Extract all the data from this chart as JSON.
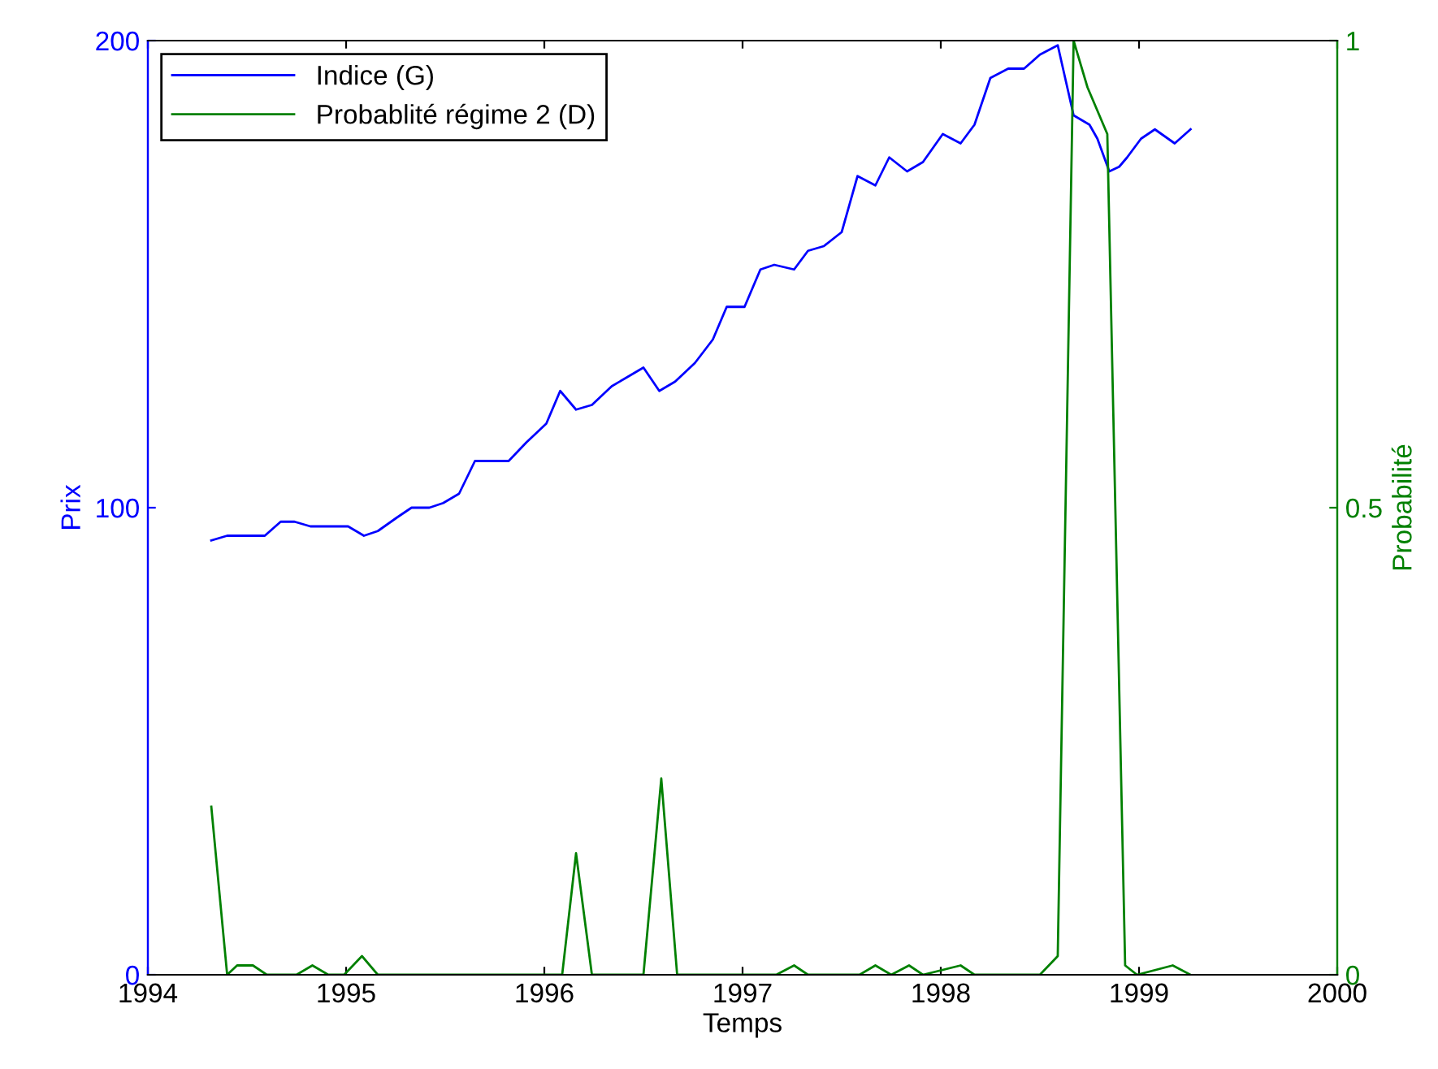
{
  "chart_data": {
    "type": "line",
    "xlabel": "Temps",
    "ylabel": "Prix",
    "y2label": "Probabilité",
    "xlim": [
      1994,
      2000
    ],
    "xticks": [
      1994,
      1995,
      1996,
      1997,
      1998,
      1999,
      2000
    ],
    "ylim": [
      0,
      200
    ],
    "yticks": [
      0,
      100,
      200
    ],
    "y2lim": [
      0,
      1
    ],
    "y2ticks": [
      0,
      0.5,
      1
    ],
    "grid": false,
    "legend": "top left",
    "marker": "none",
    "line_style": "solid",
    "series": [
      {
        "name": "Indice (G)",
        "color": "#0000ff",
        "x": [
          1994.32,
          1994.4,
          1994.46,
          1994.59,
          1994.67,
          1994.74,
          1994.82,
          1995.01,
          1995.09,
          1995.16,
          1995.26,
          1995.33,
          1995.42,
          1995.49,
          1995.57,
          1995.65,
          1995.71,
          1995.82,
          1995.91,
          1996.01,
          1996.08,
          1996.16,
          1996.24,
          1996.34,
          1996.42,
          1996.5,
          1996.58,
          1996.66,
          1996.76,
          1996.85,
          1996.92,
          1997.01,
          1997.09,
          1997.16,
          1997.26,
          1997.33,
          1997.41,
          1997.5,
          1997.58,
          1997.67,
          1997.74,
          1997.83,
          1997.91,
          1998.01,
          1998.1,
          1998.17,
          1998.25,
          1998.34,
          1998.42,
          1998.5,
          1998.59,
          1998.67,
          1998.75,
          1998.79,
          1998.85,
          1998.9,
          1998.94,
          1999.01,
          1999.08,
          1999.18,
          1999.26
        ],
        "values": [
          93,
          94,
          94,
          94,
          97,
          97,
          96,
          96,
          94,
          95,
          98,
          100,
          100,
          101,
          103,
          110,
          110,
          110,
          114,
          118,
          125,
          121,
          122,
          126,
          128,
          130,
          125,
          127,
          131,
          136,
          143,
          143,
          151,
          152,
          151,
          155,
          156,
          159,
          171,
          169,
          175,
          172,
          174,
          180,
          178,
          182,
          192,
          194,
          194,
          197,
          199,
          184,
          182,
          179,
          172,
          173,
          175,
          179,
          181,
          178,
          181
        ]
      },
      {
        "name": "Probablité régime 2 (D)",
        "color": "#008000",
        "axis": "y2",
        "x": [
          1994.32,
          1994.4,
          1994.45,
          1994.53,
          1994.6,
          1994.75,
          1994.83,
          1994.91,
          1994.99,
          1995.08,
          1995.16,
          1996.09,
          1996.16,
          1996.24,
          1996.5,
          1996.59,
          1996.67,
          1997.17,
          1997.26,
          1997.33,
          1997.59,
          1997.67,
          1997.75,
          1997.84,
          1997.91,
          1998.1,
          1998.17,
          1998.5,
          1998.59,
          1998.67,
          1998.74,
          1998.84,
          1998.93,
          1998.99,
          1999.17,
          1999.26
        ],
        "values": [
          0.18,
          0,
          0.01,
          0.01,
          0,
          0,
          0.01,
          0,
          0,
          0.02,
          0,
          0,
          0.13,
          0,
          0,
          0.21,
          0,
          0,
          0.01,
          0,
          0,
          0.01,
          0,
          0.01,
          0,
          0.01,
          0,
          0,
          0.02,
          1.0,
          0.95,
          0.9,
          0.01,
          0,
          0.01,
          0
        ]
      }
    ]
  }
}
